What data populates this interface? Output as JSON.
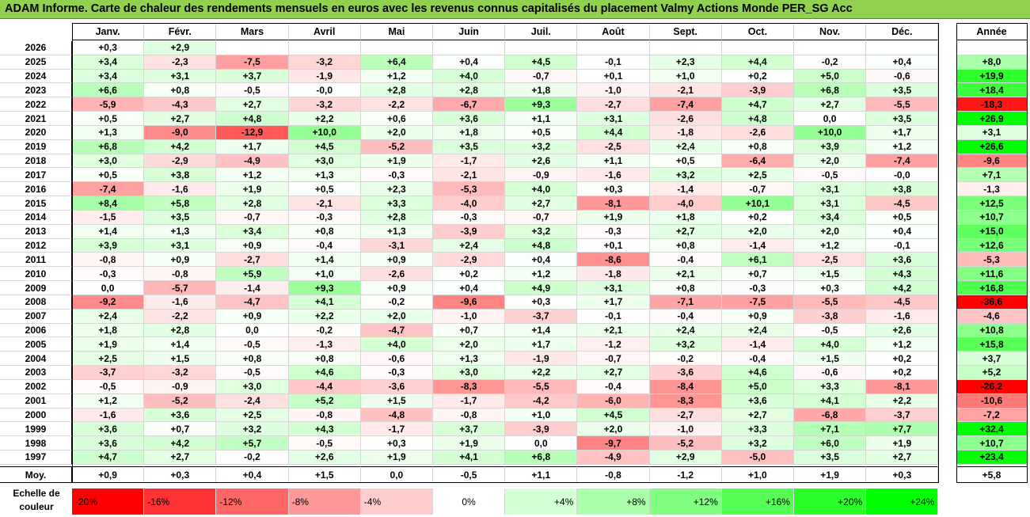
{
  "title": "ADAM Informe. Carte de chaleur des rendements mensuels en euros avec les revenus connus capitalisés du placement Valmy Actions Monde PER_SG Acc",
  "chart_data": {
    "type": "heatmap",
    "columns": [
      "Janv.",
      "Févr.",
      "Mars",
      "Avril",
      "Mai",
      "Juin",
      "Juil.",
      "Août",
      "Sept.",
      "Oct.",
      "Nov.",
      "Déc."
    ],
    "year_column_label": "Année",
    "rows": [
      {
        "year": "2026",
        "months": [
          0.3,
          2.9,
          null,
          null,
          null,
          null,
          null,
          null,
          null,
          null,
          null,
          null
        ],
        "annual": null
      },
      {
        "year": "2025",
        "months": [
          3.4,
          -2.3,
          -7.5,
          -3.2,
          6.4,
          0.4,
          4.5,
          -0.1,
          2.3,
          4.4,
          -0.2,
          0.4
        ],
        "annual": 8.0
      },
      {
        "year": "2024",
        "months": [
          3.4,
          3.1,
          3.7,
          -1.9,
          1.2,
          4.0,
          -0.7,
          0.1,
          1.0,
          0.2,
          5.0,
          -0.6
        ],
        "annual": 19.9
      },
      {
        "year": "2023",
        "months": [
          6.6,
          0.8,
          -0.5,
          -0.0,
          2.8,
          2.8,
          1.8,
          -1.0,
          -2.1,
          -3.9,
          6.8,
          3.5
        ],
        "annual": 18.4
      },
      {
        "year": "2022",
        "months": [
          -5.9,
          -4.3,
          2.7,
          -3.2,
          -2.2,
          -6.7,
          9.3,
          -2.7,
          -7.4,
          4.7,
          2.7,
          -5.5
        ],
        "annual": -18.3
      },
      {
        "year": "2021",
        "months": [
          0.5,
          2.7,
          4.8,
          2.2,
          0.6,
          3.6,
          1.1,
          3.1,
          -2.6,
          4.8,
          0.0,
          3.5
        ],
        "annual": 26.9
      },
      {
        "year": "2020",
        "months": [
          1.3,
          -9.0,
          -12.9,
          10.0,
          2.0,
          1.8,
          0.5,
          4.4,
          -1.8,
          -2.6,
          10.0,
          1.7
        ],
        "annual": 3.1
      },
      {
        "year": "2019",
        "months": [
          6.8,
          4.2,
          1.7,
          4.5,
          -5.2,
          3.5,
          3.2,
          -2.5,
          2.4,
          0.8,
          3.9,
          1.2
        ],
        "annual": 26.6
      },
      {
        "year": "2018",
        "months": [
          3.0,
          -2.9,
          -4.9,
          3.0,
          1.9,
          -1.7,
          2.6,
          1.1,
          0.5,
          -6.4,
          2.0,
          -7.4
        ],
        "annual": -9.6
      },
      {
        "year": "2017",
        "months": [
          0.5,
          3.8,
          1.2,
          1.3,
          -0.3,
          -2.1,
          -0.9,
          -1.6,
          3.2,
          2.5,
          -0.5,
          -0.0
        ],
        "annual": 7.1
      },
      {
        "year": "2016",
        "months": [
          -7.4,
          -1.6,
          1.9,
          0.5,
          2.3,
          -5.3,
          4.0,
          0.3,
          -1.4,
          -0.7,
          3.1,
          3.8
        ],
        "annual": -1.3
      },
      {
        "year": "2015",
        "months": [
          8.4,
          5.8,
          2.8,
          -2.1,
          3.3,
          -4.0,
          2.7,
          -8.1,
          -4.0,
          10.1,
          3.1,
          -4.5
        ],
        "annual": 12.5
      },
      {
        "year": "2014",
        "months": [
          -1.5,
          3.5,
          -0.7,
          -0.3,
          2.8,
          -0.3,
          -0.7,
          1.9,
          1.8,
          0.2,
          3.4,
          0.5
        ],
        "annual": 10.7
      },
      {
        "year": "2013",
        "months": [
          1.4,
          1.3,
          3.4,
          0.8,
          1.3,
          -3.9,
          3.2,
          -0.3,
          2.7,
          2.0,
          2.0,
          0.4
        ],
        "annual": 15.0
      },
      {
        "year": "2012",
        "months": [
          3.9,
          3.1,
          0.9,
          -0.4,
          -3.1,
          2.4,
          4.8,
          0.1,
          0.8,
          -1.4,
          1.2,
          -0.1
        ],
        "annual": 12.6
      },
      {
        "year": "2011",
        "months": [
          -0.8,
          0.9,
          -2.7,
          1.4,
          0.9,
          -2.9,
          0.4,
          -8.6,
          -0.4,
          6.1,
          -2.5,
          3.6
        ],
        "annual": -5.3
      },
      {
        "year": "2010",
        "months": [
          -0.3,
          -0.8,
          5.9,
          1.0,
          -2.6,
          0.2,
          1.2,
          -1.8,
          2.1,
          0.7,
          1.5,
          4.3
        ],
        "annual": 11.6
      },
      {
        "year": "2009",
        "months": [
          0.0,
          -5.7,
          -1.4,
          9.3,
          0.9,
          0.4,
          4.9,
          3.1,
          0.8,
          -0.3,
          0.3,
          4.2
        ],
        "annual": 16.8
      },
      {
        "year": "2008",
        "months": [
          -9.2,
          -1.6,
          -4.7,
          4.1,
          -0.2,
          -9.6,
          0.3,
          1.7,
          -7.1,
          -7.5,
          -5.5,
          -4.5
        ],
        "annual": -36.6
      },
      {
        "year": "2007",
        "months": [
          2.4,
          -2.2,
          0.9,
          2.2,
          2.0,
          -1.0,
          -3.7,
          -0.1,
          -0.4,
          0.9,
          -3.8,
          -1.6
        ],
        "annual": -4.6
      },
      {
        "year": "2006",
        "months": [
          1.8,
          2.8,
          0.0,
          -0.2,
          -4.7,
          0.7,
          1.4,
          2.1,
          2.4,
          2.4,
          -0.5,
          2.6
        ],
        "annual": 10.8
      },
      {
        "year": "2005",
        "months": [
          1.9,
          1.4,
          -0.5,
          -1.3,
          4.0,
          2.0,
          1.7,
          -1.2,
          3.2,
          -1.4,
          4.0,
          1.2
        ],
        "annual": 15.8
      },
      {
        "year": "2004",
        "months": [
          2.5,
          1.5,
          0.8,
          0.8,
          -0.6,
          1.3,
          -1.9,
          -0.7,
          -0.2,
          -0.4,
          1.5,
          0.2
        ],
        "annual": 3.7
      },
      {
        "year": "2003",
        "months": [
          -3.7,
          -3.2,
          -0.5,
          4.6,
          -0.3,
          3.0,
          2.2,
          2.7,
          -3.6,
          4.6,
          -0.6,
          0.2
        ],
        "annual": 5.2
      },
      {
        "year": "2002",
        "months": [
          -0.5,
          -0.9,
          3.0,
          -4.4,
          -3.6,
          -8.3,
          -5.5,
          -0.4,
          -8.4,
          5.0,
          3.3,
          -8.1
        ],
        "annual": -26.2
      },
      {
        "year": "2001",
        "months": [
          1.2,
          -5.2,
          -2.4,
          5.2,
          1.5,
          -1.7,
          -4.2,
          -6.0,
          -8.3,
          3.6,
          4.1,
          2.2
        ],
        "annual": -10.6
      },
      {
        "year": "2000",
        "months": [
          -1.6,
          3.6,
          2.5,
          -0.8,
          -4.8,
          -0.8,
          1.0,
          4.5,
          -2.7,
          2.7,
          -6.8,
          -3.7
        ],
        "annual": -7.2
      },
      {
        "year": "1999",
        "months": [
          3.6,
          0.7,
          3.2,
          4.3,
          -1.7,
          3.7,
          -3.9,
          2.0,
          -1.0,
          3.3,
          7.1,
          7.7
        ],
        "annual": 32.4
      },
      {
        "year": "1998",
        "months": [
          3.6,
          4.2,
          5.7,
          -0.5,
          0.3,
          1.9,
          0.0,
          -9.7,
          -5.2,
          3.2,
          6.0,
          1.9
        ],
        "annual": 10.7
      },
      {
        "year": "1997",
        "months": [
          4.7,
          2.7,
          -0.2,
          2.6,
          1.9,
          4.1,
          6.8,
          -4.9,
          2.9,
          -5.0,
          3.5,
          2.7
        ],
        "annual": 23.4
      }
    ],
    "average_label": "Moy.",
    "average_months": [
      0.9,
      0.3,
      0.4,
      1.5,
      0.0,
      -0.5,
      1.1,
      -0.8,
      -1.2,
      1.0,
      1.9,
      0.3
    ],
    "average_annual": 5.8,
    "scale_label": "Echelle de couleur",
    "scale_values": [
      -20,
      -16,
      -12,
      -8,
      -4,
      0,
      4,
      8,
      12,
      16,
      20,
      24
    ],
    "scale_labels": [
      "-20%",
      "-16%",
      "-12%",
      "-8%",
      "-4%",
      "0%",
      "+4%",
      "+8%",
      "+12%",
      "+16%",
      "+20%",
      "+24%"
    ],
    "colors": {
      "negative": "#ff0000",
      "neutral": "#ffffff",
      "positive": "#00ff00",
      "title_bg": "#92d050"
    }
  }
}
